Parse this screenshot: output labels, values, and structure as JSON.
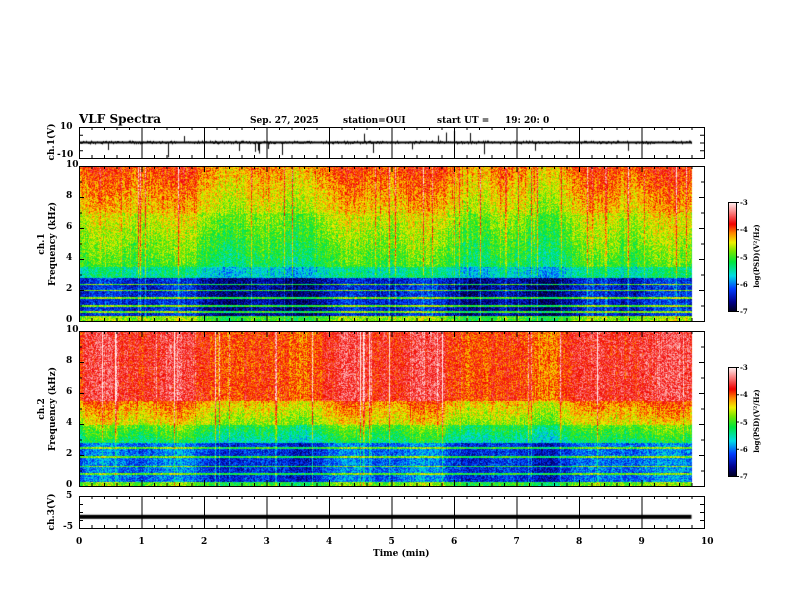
{
  "header": {
    "title": "VLF Spectra",
    "date": "Sep. 27, 2025",
    "station": "station=OUI",
    "start_label": "start  UT =",
    "start_time": "19: 20: 0"
  },
  "colors": {
    "trace": "#000000"
  },
  "chart_data": [
    {
      "type": "line",
      "name": "ch1-waveform",
      "ylabel": "ch.1(V)",
      "ylim": [
        -10,
        10
      ],
      "yticks": [
        "10",
        "-10"
      ],
      "xlim": [
        0,
        10
      ],
      "description_values": {
        "baseline": 0
      }
    },
    {
      "type": "heatmap",
      "name": "ch1-spectrogram",
      "ylabel_line1": "ch.1",
      "ylabel_line2": "Frequency (kHz)",
      "ylim": [
        0,
        10
      ],
      "yticks": [
        "0",
        "2",
        "4",
        "6",
        "8",
        "10"
      ],
      "xlim": [
        0,
        10
      ],
      "data_end_min": 9.8,
      "colorbar": {
        "label": "log(PSD)(V²/Hz)",
        "range": [
          -7,
          -3
        ],
        "ticks": [
          "-3",
          "-4",
          "-5",
          "-6",
          "-7"
        ]
      }
    },
    {
      "type": "heatmap",
      "name": "ch2-spectrogram",
      "ylabel_line1": "ch.2",
      "ylabel_line2": "Frequency (kHz)",
      "ylim": [
        0,
        10
      ],
      "yticks": [
        "0",
        "2",
        "4",
        "6",
        "8",
        "10"
      ],
      "xlim": [
        0,
        10
      ],
      "data_end_min": 9.8,
      "colorbar": {
        "label": "log(PSD)(V²/Hz)",
        "range": [
          -7,
          -3
        ],
        "ticks": [
          "-3",
          "-4",
          "-5",
          "-6",
          "-7"
        ]
      }
    },
    {
      "type": "line",
      "name": "ch3-waveform",
      "ylabel": "ch.3(V)",
      "ylim": [
        -5,
        5
      ],
      "yticks": [
        "5",
        "-5"
      ],
      "xlim": [
        0,
        10
      ],
      "x": [
        0,
        9.8
      ],
      "y": [
        -1.5,
        -1.5
      ]
    }
  ],
  "xaxis": {
    "label": "Time (min)",
    "ticks": [
      "0",
      "1",
      "2",
      "3",
      "4",
      "5",
      "6",
      "7",
      "8",
      "9",
      "10"
    ]
  }
}
